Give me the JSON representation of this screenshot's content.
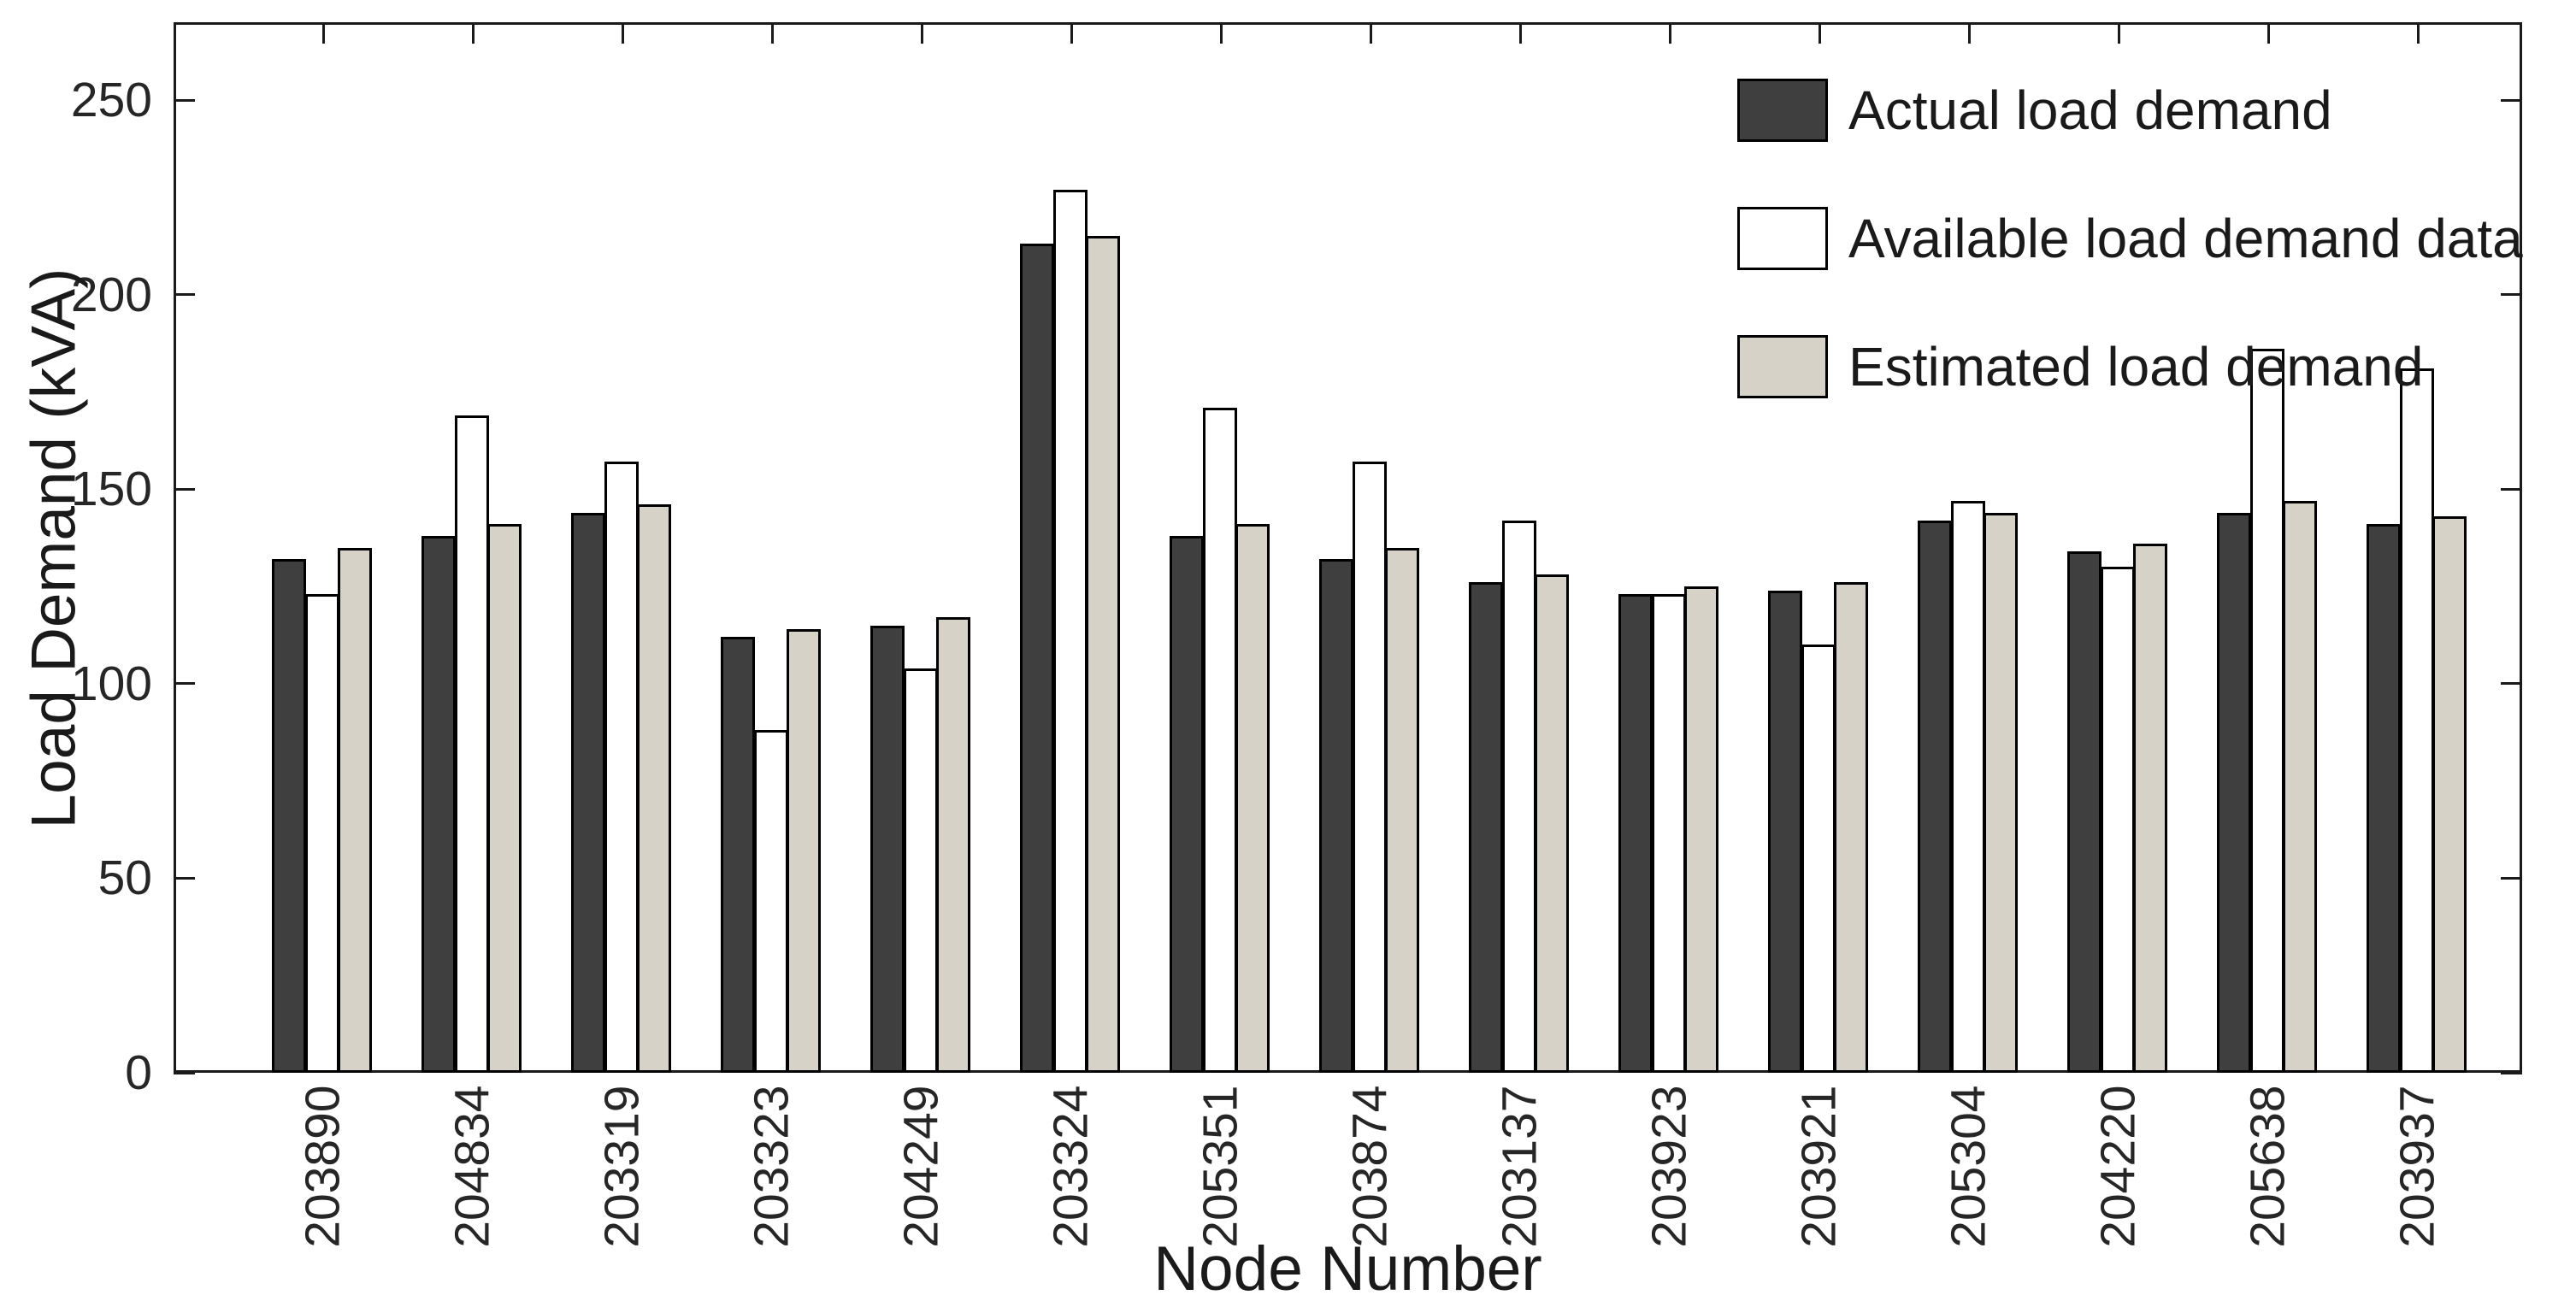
{
  "figure": {
    "background": "#ffffff",
    "kind": "grouped bar chart figure"
  },
  "chart_data": {
    "type": "bar",
    "title": "",
    "xlabel": "Node Number",
    "ylabel": "Load Demand (kVA)",
    "categories": [
      "203890",
      "204834",
      "203319",
      "203323",
      "204249",
      "203324",
      "205351",
      "203874",
      "203137",
      "203923",
      "203921",
      "205304",
      "204220",
      "205638",
      "203937"
    ],
    "series": [
      {
        "name": "Actual load demand",
        "key": "actual",
        "color": "#3f3f3f",
        "values": [
          132,
          138,
          144,
          112,
          115,
          213,
          138,
          132,
          126,
          123,
          124,
          142,
          134,
          144,
          141
        ]
      },
      {
        "name": "Available load demand data",
        "key": "available",
        "color": "#ffffff",
        "values": [
          123,
          169,
          157,
          88,
          104,
          227,
          171,
          157,
          142,
          123,
          110,
          147,
          130,
          186,
          181
        ]
      },
      {
        "name": "Estimated load demand",
        "key": "estimated",
        "color": "#d6d2c8",
        "values": [
          135,
          141,
          146,
          114,
          117,
          215,
          141,
          135,
          128,
          125,
          126,
          144,
          136,
          147,
          143
        ]
      }
    ],
    "ylim": [
      0,
      270
    ],
    "yticks": [
      0,
      50,
      100,
      150,
      200,
      250
    ],
    "bar_edge_color": "#000000",
    "axis_color": "#1a1a1a",
    "text_color": "#262626",
    "legend_position": "northeast",
    "legend_boxed": false,
    "grid": false
  }
}
